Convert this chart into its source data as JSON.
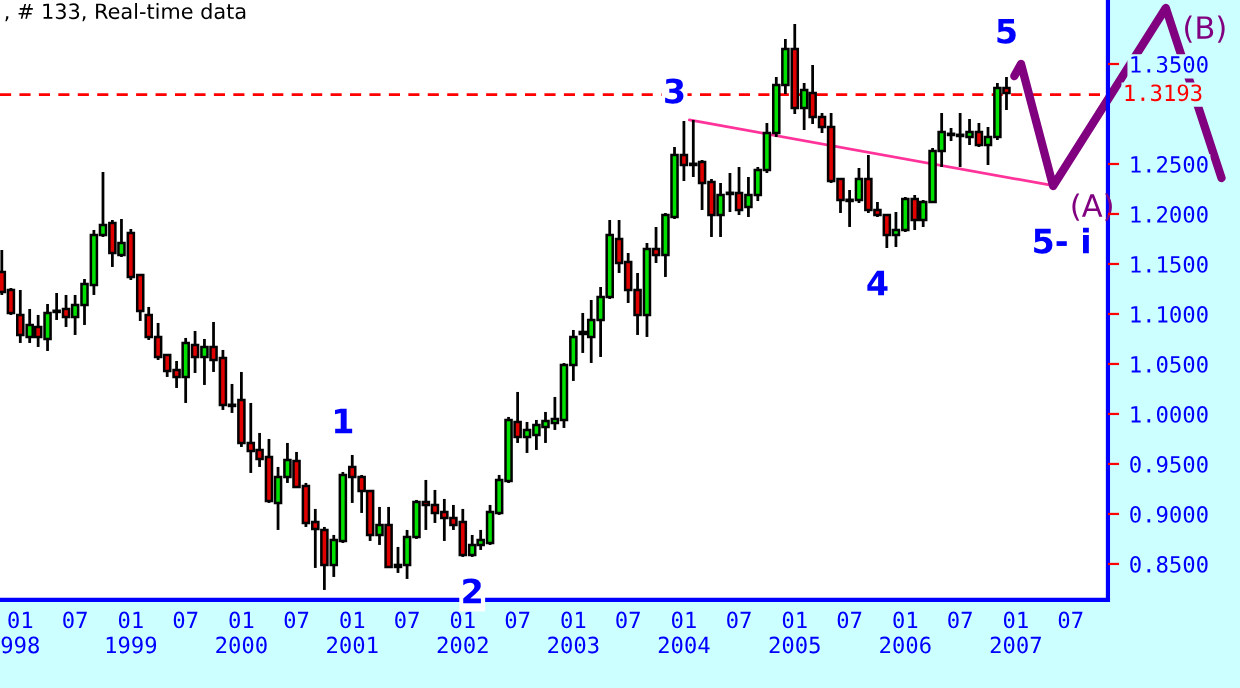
{
  "chart_data": {
    "type": "candlestick",
    "title": ", # 133, Real-time data",
    "x": [
      "1997-11",
      "1997-12",
      "1998-01",
      "1998-02",
      "1998-03",
      "1998-04",
      "1998-05",
      "1998-06",
      "1998-07",
      "1998-08",
      "1998-09",
      "1998-10",
      "1998-11",
      "1998-12",
      "1999-01",
      "1999-02",
      "1999-03",
      "1999-04",
      "1999-05",
      "1999-06",
      "1999-07",
      "1999-08",
      "1999-09",
      "1999-10",
      "1999-11",
      "1999-12",
      "2000-01",
      "2000-02",
      "2000-03",
      "2000-04",
      "2000-05",
      "2000-06",
      "2000-07",
      "2000-08",
      "2000-09",
      "2000-10",
      "2000-11",
      "2000-12",
      "2001-01",
      "2001-02",
      "2001-03",
      "2001-04",
      "2001-05",
      "2001-06",
      "2001-07",
      "2001-08",
      "2001-09",
      "2001-10",
      "2001-11",
      "2001-12",
      "2002-01",
      "2002-02",
      "2002-03",
      "2002-04",
      "2002-05",
      "2002-06",
      "2002-07",
      "2002-08",
      "2002-09",
      "2002-10",
      "2002-11",
      "2002-12",
      "2003-01",
      "2003-02",
      "2003-03",
      "2003-04",
      "2003-05",
      "2003-06",
      "2003-07",
      "2003-08",
      "2003-09",
      "2003-10",
      "2003-11",
      "2003-12",
      "2004-01",
      "2004-02",
      "2004-03",
      "2004-04",
      "2004-05",
      "2004-06",
      "2004-07",
      "2004-08",
      "2004-09",
      "2004-10",
      "2004-11",
      "2004-12",
      "2005-01",
      "2005-02",
      "2005-03",
      "2005-04",
      "2005-05",
      "2005-06",
      "2005-07",
      "2005-08",
      "2005-09",
      "2005-10",
      "2005-11",
      "2005-12",
      "2006-01",
      "2006-02",
      "2006-03",
      "2006-04",
      "2006-05",
      "2006-06",
      "2006-07",
      "2006-08",
      "2006-09",
      "2006-10",
      "2006-11",
      "2006-12"
    ],
    "ohlc": [
      [
        1.142,
        1.164,
        1.119,
        1.122
      ],
      [
        1.124,
        1.126,
        1.099,
        1.101
      ],
      [
        1.099,
        1.124,
        1.071,
        1.079
      ],
      [
        1.077,
        1.105,
        1.071,
        1.089
      ],
      [
        1.087,
        1.099,
        1.067,
        1.077
      ],
      [
        1.075,
        1.11,
        1.063,
        1.101
      ],
      [
        1.102,
        1.121,
        1.094,
        1.103
      ],
      [
        1.105,
        1.119,
        1.087,
        1.097
      ],
      [
        1.097,
        1.119,
        1.079,
        1.109
      ],
      [
        1.109,
        1.135,
        1.089,
        1.13
      ],
      [
        1.129,
        1.184,
        1.119,
        1.179
      ],
      [
        1.179,
        1.242,
        1.177,
        1.189
      ],
      [
        1.191,
        1.194,
        1.147,
        1.161
      ],
      [
        1.159,
        1.195,
        1.157,
        1.171
      ],
      [
        1.181,
        1.185,
        1.134,
        1.137
      ],
      [
        1.139,
        1.139,
        1.093,
        1.103
      ],
      [
        1.099,
        1.107,
        1.074,
        1.077
      ],
      [
        1.077,
        1.091,
        1.054,
        1.057
      ],
      [
        1.059,
        1.059,
        1.037,
        1.043
      ],
      [
        1.044,
        1.053,
        1.026,
        1.037
      ],
      [
        1.037,
        1.076,
        1.011,
        1.071
      ],
      [
        1.069,
        1.083,
        1.041,
        1.057
      ],
      [
        1.057,
        1.075,
        1.029,
        1.067
      ],
      [
        1.067,
        1.092,
        1.042,
        1.054
      ],
      [
        1.056,
        1.064,
        1.004,
        1.009
      ],
      [
        1.009,
        1.03,
        1.001,
        1.008
      ],
      [
        1.014,
        1.042,
        0.967,
        0.971
      ],
      [
        0.971,
        1.011,
        0.941,
        0.963
      ],
      [
        0.964,
        0.981,
        0.947,
        0.955
      ],
      [
        0.957,
        0.975,
        0.911,
        0.913
      ],
      [
        0.911,
        0.947,
        0.884,
        0.937
      ],
      [
        0.937,
        0.971,
        0.931,
        0.954
      ],
      [
        0.953,
        0.962,
        0.926,
        0.927
      ],
      [
        0.928,
        0.931,
        0.887,
        0.891
      ],
      [
        0.892,
        0.905,
        0.846,
        0.885
      ],
      [
        0.884,
        0.887,
        0.824,
        0.849
      ],
      [
        0.849,
        0.879,
        0.837,
        0.874
      ],
      [
        0.873,
        0.942,
        0.871,
        0.939
      ],
      [
        0.947,
        0.959,
        0.911,
        0.937
      ],
      [
        0.937,
        0.939,
        0.901,
        0.923
      ],
      [
        0.923,
        0.923,
        0.873,
        0.879
      ],
      [
        0.879,
        0.907,
        0.869,
        0.889
      ],
      [
        0.889,
        0.907,
        0.847,
        0.847
      ],
      [
        0.847,
        0.867,
        0.841,
        0.849
      ],
      [
        0.849,
        0.884,
        0.835,
        0.877
      ],
      [
        0.877,
        0.914,
        0.875,
        0.912
      ],
      [
        0.912,
        0.934,
        0.884,
        0.909
      ],
      [
        0.909,
        0.924,
        0.891,
        0.901
      ],
      [
        0.902,
        0.915,
        0.873,
        0.896
      ],
      [
        0.896,
        0.909,
        0.884,
        0.889
      ],
      [
        0.892,
        0.905,
        0.857,
        0.859
      ],
      [
        0.859,
        0.879,
        0.857,
        0.869
      ],
      [
        0.869,
        0.884,
        0.864,
        0.874
      ],
      [
        0.871,
        0.909,
        0.869,
        0.902
      ],
      [
        0.901,
        0.939,
        0.899,
        0.934
      ],
      [
        0.933,
        0.997,
        0.931,
        0.994
      ],
      [
        0.992,
        1.022,
        0.971,
        0.977
      ],
      [
        0.977,
        0.992,
        0.961,
        0.984
      ],
      [
        0.979,
        0.994,
        0.964,
        0.989
      ],
      [
        0.987,
        1.002,
        0.971,
        0.993
      ],
      [
        0.991,
        1.017,
        0.984,
        0.995
      ],
      [
        0.994,
        1.051,
        0.986,
        1.049
      ],
      [
        1.049,
        1.084,
        1.033,
        1.077
      ],
      [
        1.082,
        1.101,
        1.061,
        1.08
      ],
      [
        1.077,
        1.114,
        1.051,
        1.094
      ],
      [
        1.094,
        1.127,
        1.057,
        1.117
      ],
      [
        1.117,
        1.194,
        1.115,
        1.179
      ],
      [
        1.175,
        1.194,
        1.141,
        1.151
      ],
      [
        1.152,
        1.161,
        1.111,
        1.124
      ],
      [
        1.124,
        1.141,
        1.079,
        1.099
      ],
      [
        1.099,
        1.171,
        1.077,
        1.165
      ],
      [
        1.165,
        1.187,
        1.151,
        1.159
      ],
      [
        1.159,
        1.201,
        1.137,
        1.199
      ],
      [
        1.197,
        1.267,
        1.195,
        1.259
      ],
      [
        1.259,
        1.293,
        1.233,
        1.249
      ],
      [
        1.25,
        1.294,
        1.237,
        1.249
      ],
      [
        1.252,
        1.254,
        1.204,
        1.231
      ],
      [
        1.232,
        1.235,
        1.177,
        1.199
      ],
      [
        1.199,
        1.231,
        1.177,
        1.219
      ],
      [
        1.22,
        1.241,
        1.202,
        1.221
      ],
      [
        1.221,
        1.247,
        1.199,
        1.204
      ],
      [
        1.207,
        1.237,
        1.197,
        1.219
      ],
      [
        1.219,
        1.247,
        1.213,
        1.244
      ],
      [
        1.244,
        1.291,
        1.241,
        1.281
      ],
      [
        1.281,
        1.337,
        1.277,
        1.329
      ],
      [
        1.329,
        1.375,
        1.32,
        1.365
      ],
      [
        1.365,
        1.39,
        1.3,
        1.306
      ],
      [
        1.306,
        1.331,
        1.284,
        1.324
      ],
      [
        1.321,
        1.349,
        1.29,
        1.297
      ],
      [
        1.297,
        1.301,
        1.281,
        1.287
      ],
      [
        1.287,
        1.301,
        1.231,
        1.233
      ],
      [
        1.235,
        1.235,
        1.201,
        1.214
      ],
      [
        1.213,
        1.224,
        1.187,
        1.214
      ],
      [
        1.214,
        1.246,
        1.211,
        1.235
      ],
      [
        1.235,
        1.259,
        1.201,
        1.204
      ],
      [
        1.204,
        1.212,
        1.197,
        1.199
      ],
      [
        1.199,
        1.199,
        1.166,
        1.179
      ],
      [
        1.179,
        1.202,
        1.167,
        1.184
      ],
      [
        1.184,
        1.217,
        1.182,
        1.215
      ],
      [
        1.215,
        1.219,
        1.184,
        1.194
      ],
      [
        1.194,
        1.214,
        1.187,
        1.212
      ],
      [
        1.212,
        1.266,
        1.211,
        1.263
      ],
      [
        1.263,
        1.301,
        1.247,
        1.282
      ],
      [
        1.279,
        1.286,
        1.273,
        1.28
      ],
      [
        1.279,
        1.301,
        1.247,
        1.278
      ],
      [
        1.277,
        1.295,
        1.269,
        1.282
      ],
      [
        1.282,
        1.291,
        1.267,
        1.269
      ],
      [
        1.269,
        1.287,
        1.249,
        1.277
      ],
      [
        1.277,
        1.331,
        1.274,
        1.326
      ],
      [
        1.326,
        1.337,
        1.304,
        1.321
      ]
    ],
    "series": [
      {
        "type": "line",
        "color": "#ff3399",
        "x": [
          "2004-01-19",
          "2007-05-10"
        ],
        "values": [
          1.294,
          1.228
        ]
      },
      {
        "type": "line",
        "color": "#800080",
        "x": [
          "2006-12-27",
          "2007-01-18",
          "2007-05-04",
          "2008-05-10",
          "2008-11-10"
        ],
        "values": [
          1.338,
          1.35,
          1.228,
          1.406,
          1.236
        ],
        "value_labels": [
          null,
          null,
          "(A)",
          "(B)",
          null
        ]
      }
    ],
    "ref_lines": [
      {
        "axis": "y",
        "value": 1.3193,
        "label": "1.3193",
        "color": "#ff0000",
        "line_style": "dashed"
      }
    ],
    "annotations": [
      {
        "text": "1",
        "x": "2000-12",
        "y": 0.99
      },
      {
        "text": "2",
        "x": "2002-02",
        "y": 0.82
      },
      {
        "text": "3",
        "x": "2003-12",
        "y": 1.32
      },
      {
        "text": "4",
        "x": "2005-10",
        "y": 1.128
      },
      {
        "text": "5",
        "x": "2006-12",
        "y": 1.38
      },
      {
        "text": "5- i",
        "x": "2007-06",
        "y": 1.17
      }
    ],
    "xlim": [
      "1997-10-26",
      "2009-01-10"
    ],
    "xticks": [
      {
        "value": "1998-01",
        "label": "01\n998"
      },
      {
        "value": "1998-07",
        "label": "07"
      },
      {
        "value": "1999-01",
        "label": "01\n1999"
      },
      {
        "value": "1999-07",
        "label": "07"
      },
      {
        "value": "2000-01",
        "label": "01\n2000"
      },
      {
        "value": "2000-07",
        "label": "07"
      },
      {
        "value": "2001-01",
        "label": "01\n2001"
      },
      {
        "value": "2001-07",
        "label": "07"
      },
      {
        "value": "2002-01",
        "label": "01\n2002"
      },
      {
        "value": "2002-07",
        "label": "07"
      },
      {
        "value": "2003-01",
        "label": "01\n2003"
      },
      {
        "value": "2003-07",
        "label": "07"
      },
      {
        "value": "2004-01",
        "label": "01\n2004"
      },
      {
        "value": "2004-07",
        "label": "07"
      },
      {
        "value": "2005-01",
        "label": "01\n2005"
      },
      {
        "value": "2005-07",
        "label": "07"
      },
      {
        "value": "2006-01",
        "label": "01\n2006"
      },
      {
        "value": "2006-07",
        "label": "07"
      },
      {
        "value": "2007-01",
        "label": "01\n2007"
      },
      {
        "value": "2007-07",
        "label": "07"
      }
    ],
    "ylim": [
      0.814,
      1.414
    ],
    "yticks": [
      {
        "value": 0.85,
        "label": "0.8500"
      },
      {
        "value": 0.9,
        "label": "0.9000"
      },
      {
        "value": 0.95,
        "label": "0.9500"
      },
      {
        "value": 1.0,
        "label": "1.0000"
      },
      {
        "value": 1.05,
        "label": "1.0500"
      },
      {
        "value": 1.1,
        "label": "1.1000"
      },
      {
        "value": 1.15,
        "label": "1.1500"
      },
      {
        "value": 1.2,
        "label": "1.2000"
      },
      {
        "value": 1.25,
        "label": "1.2500"
      },
      {
        "value": 1.35,
        "label": "1.3500"
      }
    ],
    "grid": false,
    "legend": false
  }
}
